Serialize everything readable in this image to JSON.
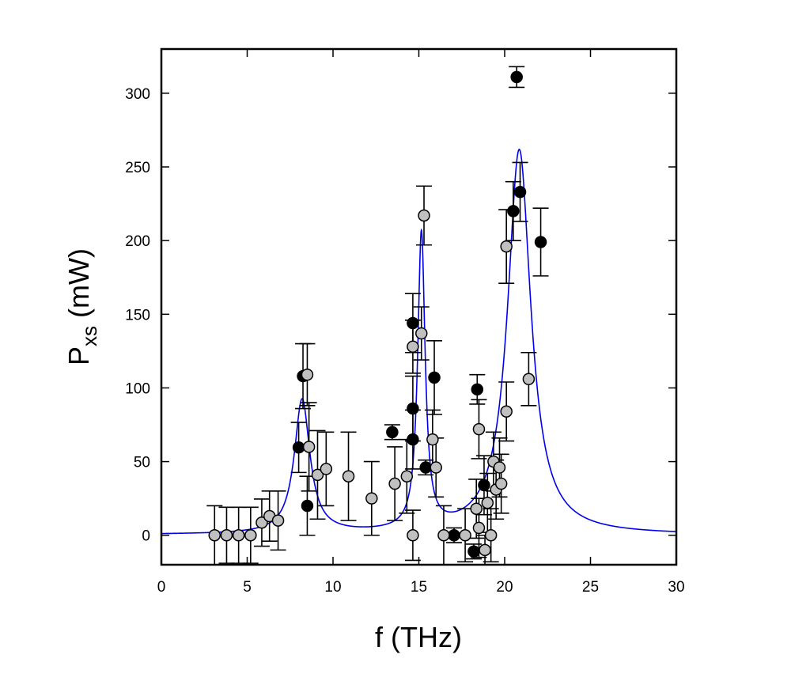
{
  "chart_data": {
    "type": "scatter",
    "title": "",
    "xlabel": "f (THz)",
    "ylabel_main": "P",
    "ylabel_sub": "xs",
    "ylabel_unit": "(mW)",
    "xlim": [
      0,
      30
    ],
    "ylim": [
      -20,
      330
    ],
    "xticks": [
      0,
      5,
      10,
      15,
      20,
      25,
      30
    ],
    "yticks": [
      0,
      50,
      100,
      150,
      200,
      250,
      300
    ],
    "grid": false,
    "colors": {
      "fit": "#0000ee",
      "filled": "#000000",
      "open": "#c0c0c0",
      "errorbar": "#000000"
    },
    "series": [
      {
        "name": "filled",
        "points": [
          [
            8.0,
            59.6,
            17
          ],
          [
            8.25,
            108,
            22
          ],
          [
            8.5,
            20,
            20
          ],
          [
            13.45,
            70,
            5
          ],
          [
            14.65,
            65,
            20
          ],
          [
            14.65,
            86,
            22
          ],
          [
            14.65,
            144,
            20
          ],
          [
            15.4,
            46,
            5
          ],
          [
            15.9,
            107,
            25
          ],
          [
            17.05,
            0,
            5
          ],
          [
            18.2,
            -11,
            5
          ],
          [
            18.4,
            99,
            10
          ],
          [
            18.8,
            34,
            20
          ],
          [
            20.5,
            220,
            20
          ],
          [
            20.9,
            233,
            20
          ],
          [
            20.7,
            311,
            7
          ],
          [
            22.1,
            199,
            23
          ]
        ]
      },
      {
        "name": "open",
        "points": [
          [
            3.1,
            0,
            20
          ],
          [
            3.8,
            0,
            19
          ],
          [
            4.5,
            0,
            19
          ],
          [
            5.2,
            0,
            19
          ],
          [
            5.85,
            8.6,
            16
          ],
          [
            6.3,
            13,
            17
          ],
          [
            6.8,
            10,
            20
          ],
          [
            8.5,
            109,
            21
          ],
          [
            8.6,
            60,
            30
          ],
          [
            9.1,
            41,
            30
          ],
          [
            9.6,
            45,
            25
          ],
          [
            10.9,
            40,
            30
          ],
          [
            12.25,
            25,
            25
          ],
          [
            13.6,
            35,
            25
          ],
          [
            14.3,
            40,
            25
          ],
          [
            14.65,
            0,
            17
          ],
          [
            14.65,
            128,
            18
          ],
          [
            15.15,
            137,
            18
          ],
          [
            15.3,
            217,
            20
          ],
          [
            15.8,
            65,
            20
          ],
          [
            16.0,
            46,
            20
          ],
          [
            16.45,
            0,
            20
          ],
          [
            17.7,
            0,
            18
          ],
          [
            18.35,
            18,
            20
          ],
          [
            18.5,
            5,
            20
          ],
          [
            18.5,
            72,
            20
          ],
          [
            18.85,
            -10,
            10
          ],
          [
            19.2,
            0,
            18
          ],
          [
            19.0,
            22,
            20
          ],
          [
            19.5,
            31,
            20
          ],
          [
            19.35,
            50,
            20
          ],
          [
            19.7,
            46,
            20
          ],
          [
            19.8,
            35,
            20
          ],
          [
            20.1,
            84,
            20
          ],
          [
            20.1,
            196,
            25
          ],
          [
            21.4,
            106,
            18
          ]
        ]
      }
    ],
    "fit": {
      "model": "sum of Lorentzians",
      "baseline": 0.3,
      "peaks": [
        {
          "center": 8.2,
          "amplitude": 91,
          "hwhm": 0.55
        },
        {
          "center": 15.15,
          "amplitude": 201,
          "hwhm": 0.26
        },
        {
          "center": 20.85,
          "amplitude": 261,
          "hwhm": 0.82
        }
      ]
    }
  }
}
